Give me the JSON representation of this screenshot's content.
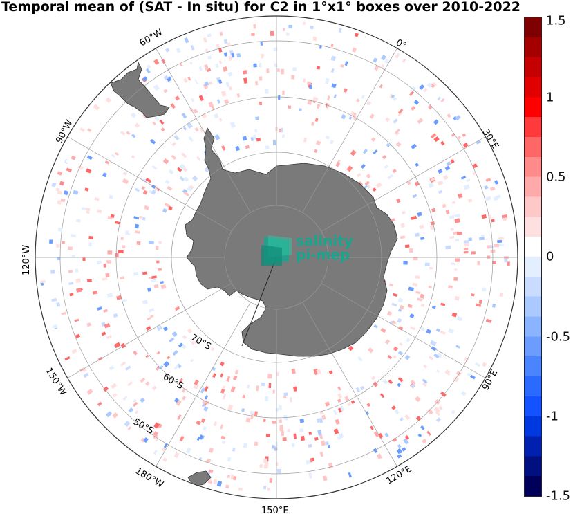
{
  "title": "Temporal mean of (SAT - In situ) for C2 in 1°x1° boxes over 2010-2022",
  "map": {
    "projection": "south-polar-stereographic",
    "longitude_labels": [
      "0°",
      "30°E",
      "60°W",
      "90°W",
      "120°W",
      "150°W",
      "180°W",
      "90°E",
      "120°E",
      "150°E"
    ],
    "latitude_labels": [
      "70°S",
      "60°S",
      "50°S"
    ],
    "land_color": "#7a7a7a",
    "ocean_color": "#ffffff"
  },
  "logo": {
    "line1": "salinity",
    "line2": "pi-mep",
    "color": "#18a58e"
  },
  "colorbar": {
    "ticks": [
      "1.5",
      "1",
      "0.5",
      "0",
      "-0.5",
      "-1",
      "-1.5"
    ],
    "min": -1.5,
    "max": 1.5,
    "colors_top_to_bottom": [
      "#7f0000",
      "#a50000",
      "#c40000",
      "#e00000",
      "#ff0000",
      "#ff3a3a",
      "#ff6666",
      "#ff8a8a",
      "#ffaaaa",
      "#ffc8c8",
      "#ffe0e0",
      "#ffffff",
      "#e3efff",
      "#c9dcff",
      "#a9c9ff",
      "#8ab4ff",
      "#6a9dff",
      "#4a84ff",
      "#2a6aff",
      "#1451ff",
      "#0038e0",
      "#0020b0",
      "#001080",
      "#00005a"
    ]
  }
}
